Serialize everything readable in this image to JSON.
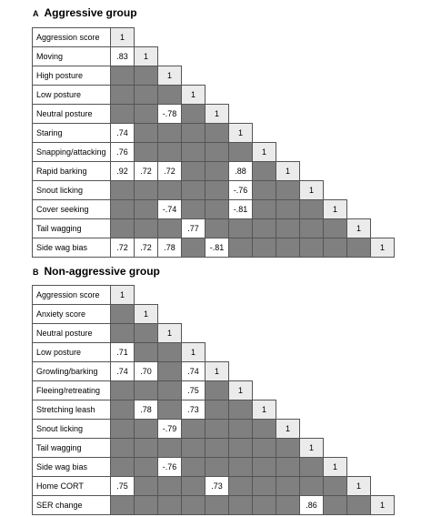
{
  "panels": [
    {
      "letter": "A",
      "title": "Aggressive group",
      "rows": [
        {
          "label": "Aggression score",
          "values": [
            "1"
          ]
        },
        {
          "label": "Moving",
          "values": [
            ".83",
            "1"
          ]
        },
        {
          "label": "High posture",
          "values": [
            "",
            "",
            "1"
          ]
        },
        {
          "label": "Low posture",
          "values": [
            "",
            "",
            "",
            "1"
          ]
        },
        {
          "label": "Neutral posture",
          "values": [
            "",
            "",
            "-.78",
            "",
            "1"
          ]
        },
        {
          "label": "Staring",
          "values": [
            ".74",
            "",
            "",
            "",
            "",
            "1"
          ]
        },
        {
          "label": "Snapping/attacking",
          "values": [
            ".76",
            "",
            "",
            "",
            "",
            "",
            "1"
          ]
        },
        {
          "label": "Rapid barking",
          "values": [
            ".92",
            ".72",
            ".72",
            "",
            "",
            ".88",
            "",
            "1"
          ]
        },
        {
          "label": "Snout licking",
          "values": [
            "",
            "",
            "",
            "",
            "",
            "-.76",
            "",
            "",
            "1"
          ]
        },
        {
          "label": "Cover seeking",
          "values": [
            "",
            "",
            "-.74",
            "",
            "",
            "-.81",
            "",
            "",
            "",
            "1"
          ]
        },
        {
          "label": "Tail wagging",
          "values": [
            "",
            "",
            "",
            ".77",
            "",
            "",
            "",
            "",
            "",
            "",
            "1"
          ]
        },
        {
          "label": "Side wag bias",
          "values": [
            ".72",
            ".72",
            ".78",
            "",
            "-.81",
            "",
            "",
            "",
            "",
            "",
            "",
            "1"
          ]
        }
      ]
    },
    {
      "letter": "B",
      "title": "Non-aggressive group",
      "rows": [
        {
          "label": "Aggression score",
          "values": [
            "1"
          ]
        },
        {
          "label": "Anxiety score",
          "values": [
            "",
            "1"
          ]
        },
        {
          "label": "Neutral posture",
          "values": [
            "",
            "",
            "1"
          ]
        },
        {
          "label": "Low posture",
          "values": [
            ".71",
            "",
            "",
            "1"
          ]
        },
        {
          "label": "Growling/barking",
          "values": [
            ".74",
            ".70",
            "",
            ".74",
            "1"
          ]
        },
        {
          "label": "Fleeing/retreating",
          "values": [
            "",
            "",
            "",
            ".75",
            "",
            "1"
          ]
        },
        {
          "label": "Stretching leash",
          "values": [
            "",
            ".78",
            "",
            ".73",
            "",
            "",
            "1"
          ]
        },
        {
          "label": "Snout licking",
          "values": [
            "",
            "",
            "-.79",
            "",
            "",
            "",
            "",
            "1"
          ]
        },
        {
          "label": "Tail wagging",
          "values": [
            "",
            "",
            "",
            "",
            "",
            "",
            "",
            "",
            "1"
          ]
        },
        {
          "label": "Side wag bias",
          "values": [
            "",
            "",
            "-.76",
            "",
            "",
            "",
            "",
            "",
            "",
            "1"
          ]
        },
        {
          "label": "Home CORT",
          "values": [
            ".75",
            "",
            "",
            "",
            ".73",
            "",
            "",
            "",
            "",
            "",
            "1"
          ]
        },
        {
          "label": "SER change",
          "values": [
            "",
            "",
            "",
            "",
            "",
            "",
            "",
            "",
            ".86",
            "",
            "",
            "1"
          ]
        }
      ]
    }
  ],
  "colors": {
    "significant": "#ffffff",
    "not_significant": "#808080",
    "diagonal": "#ebebeb"
  }
}
